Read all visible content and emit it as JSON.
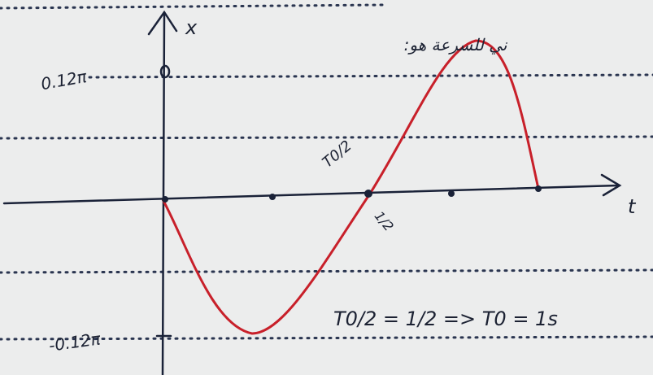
{
  "axes": {
    "vertical_label": "x",
    "horizontal_label": "t"
  },
  "ticks": {
    "top": "0.12π",
    "bottom": "-0.12π"
  },
  "annotations": {
    "heading": "ني للسرعة هو:",
    "half_period": "T0/2",
    "half_value": "1/2",
    "equation": "T0/2 = 1/2 => T0 = 1s"
  }
}
